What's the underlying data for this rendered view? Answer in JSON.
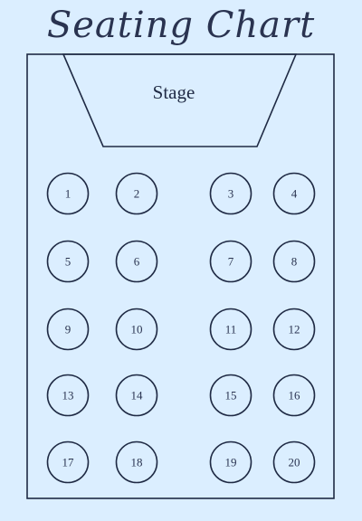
{
  "title": "Seating Chart",
  "stage": {
    "label": "Stage"
  },
  "tables": [
    {
      "label": "1"
    },
    {
      "label": "2"
    },
    {
      "label": "3"
    },
    {
      "label": "4"
    },
    {
      "label": "5"
    },
    {
      "label": "6"
    },
    {
      "label": "7"
    },
    {
      "label": "8"
    },
    {
      "label": "9"
    },
    {
      "label": "10"
    },
    {
      "label": "11"
    },
    {
      "label": "12"
    },
    {
      "label": "13"
    },
    {
      "label": "14"
    },
    {
      "label": "15"
    },
    {
      "label": "16"
    },
    {
      "label": "17"
    },
    {
      "label": "18"
    },
    {
      "label": "19"
    },
    {
      "label": "20"
    }
  ],
  "colors": {
    "background": "#dbeeff",
    "stroke": "#1f2a44"
  }
}
